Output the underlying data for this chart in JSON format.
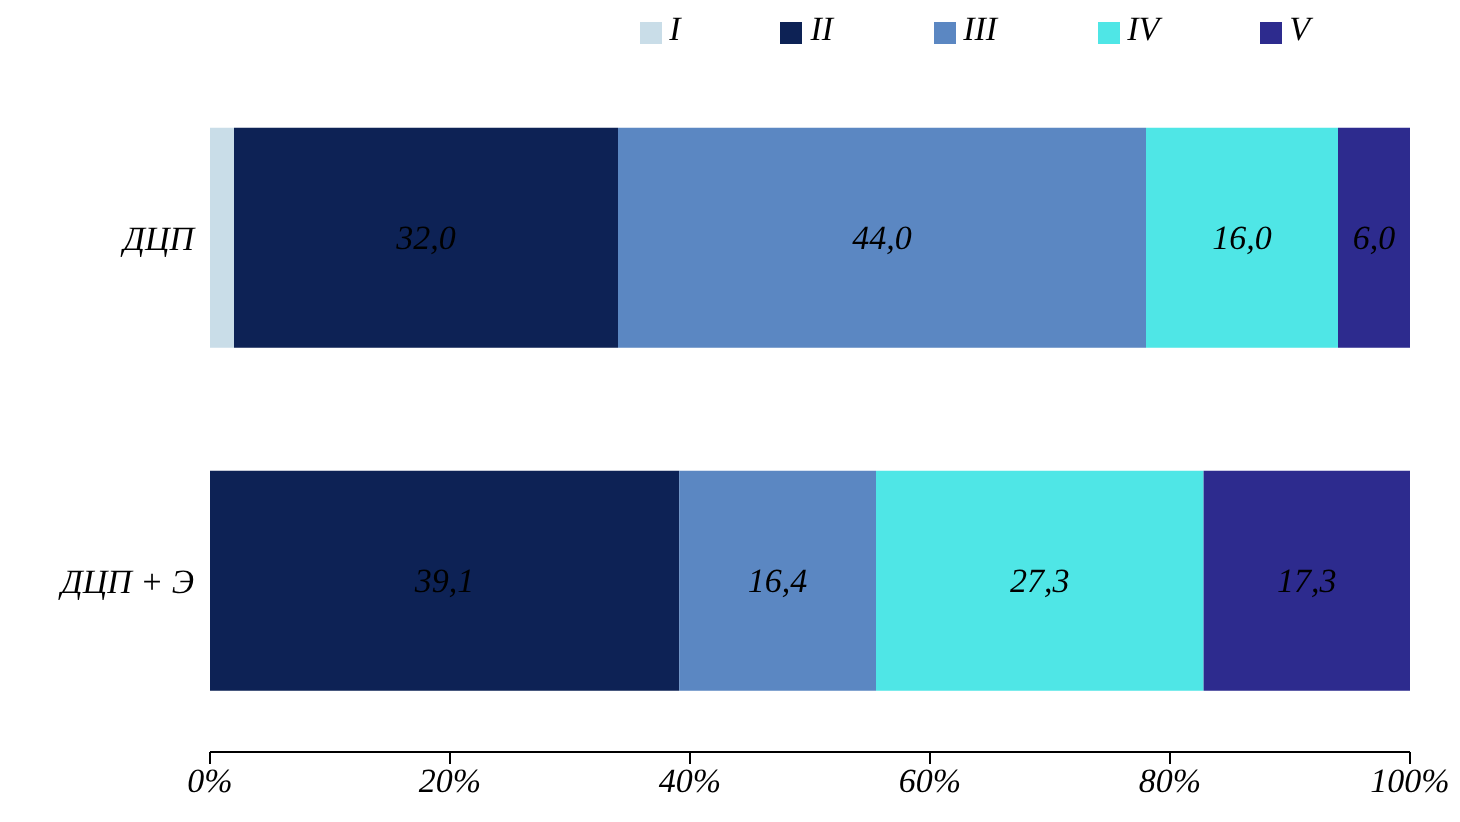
{
  "chart_data": {
    "type": "bar",
    "orientation": "horizontal",
    "stacked": true,
    "legend": "top right",
    "grid": false,
    "categories": [
      "ДЦП",
      "ДЦП + Э"
    ],
    "series": [
      {
        "name": "I",
        "color": "#c9dde8",
        "values": [
          2,
          0
        ],
        "value_labels": [
          null,
          null
        ]
      },
      {
        "name": "II",
        "color": "#0d2255",
        "values": [
          32.0,
          39.1
        ],
        "value_labels": [
          "32,0",
          "39,1"
        ]
      },
      {
        "name": "III",
        "color": "#5b87c2",
        "values": [
          44.0,
          16.4
        ],
        "value_labels": [
          "44,0",
          "16,4"
        ]
      },
      {
        "name": "IV",
        "color": "#4fe6e6",
        "values": [
          16.0,
          27.3
        ],
        "value_labels": [
          "16,0",
          "27,3"
        ]
      },
      {
        "name": "V",
        "color": "#2d2b8e",
        "values": [
          6.0,
          17.3
        ],
        "value_labels": [
          "6,0",
          "17,3"
        ]
      }
    ],
    "xlim": [
      0,
      100
    ],
    "xticks": [
      {
        "value": 0,
        "label": "0%"
      },
      {
        "value": 20,
        "label": "20%"
      },
      {
        "value": 40,
        "label": "40%"
      },
      {
        "value": 60,
        "label": "60%"
      },
      {
        "value": 80,
        "label": "80%"
      },
      {
        "value": 100,
        "label": "100%"
      }
    ]
  }
}
